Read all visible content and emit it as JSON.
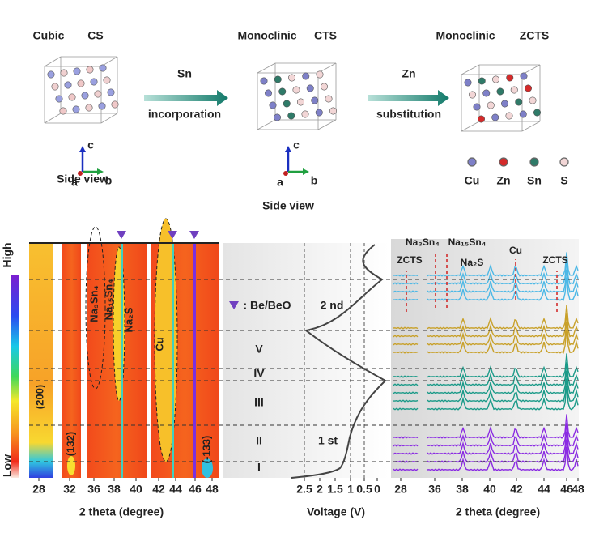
{
  "top": {
    "structures": [
      {
        "title": "Cubic",
        "formula": "CS",
        "view": "Side view",
        "axes": [
          "c",
          "a",
          "b"
        ]
      },
      {
        "title": "Monoclinic",
        "formula": "CTS",
        "view": "Side view",
        "axes": [
          "c",
          "a",
          "b"
        ]
      },
      {
        "title": "Monoclinic",
        "formula": "ZCTS"
      }
    ],
    "arrows": [
      {
        "element": "Sn",
        "label": "incorporation"
      },
      {
        "element": "Zn",
        "label": "substitution"
      }
    ],
    "legend": [
      "Cu",
      "Zn",
      "Sn",
      "S"
    ]
  },
  "heatmap": {
    "colorbar": [
      "High",
      "Low"
    ],
    "labels": [
      "(200)",
      "(132)",
      "Na₃Sn₄",
      "Na₁₅Sn₄",
      "Na₂S",
      "Cu",
      "(-133)"
    ],
    "xticks": [
      28,
      32,
      36,
      38,
      40,
      42,
      44,
      46,
      48
    ],
    "xlabel": "2 theta (degree)"
  },
  "voltage": {
    "legend": ": Be/BeO",
    "cycles": [
      "2 nd",
      "1 st"
    ],
    "stages": [
      "V",
      "IV",
      "III",
      "II",
      "I"
    ],
    "xticks": [
      2.5,
      2,
      1.5,
      1,
      0.5,
      0
    ],
    "xlabel": "Voltage (V)"
  },
  "patterns": {
    "labels": [
      "ZCTS",
      "Na₃Sn₄",
      "Na₁₅Sn₄",
      "Na₂S",
      "Cu",
      "ZCTS"
    ],
    "xticks": [
      28,
      36,
      38,
      40,
      42,
      44,
      46,
      48
    ],
    "xlabel": "2 theta (degree)"
  }
}
